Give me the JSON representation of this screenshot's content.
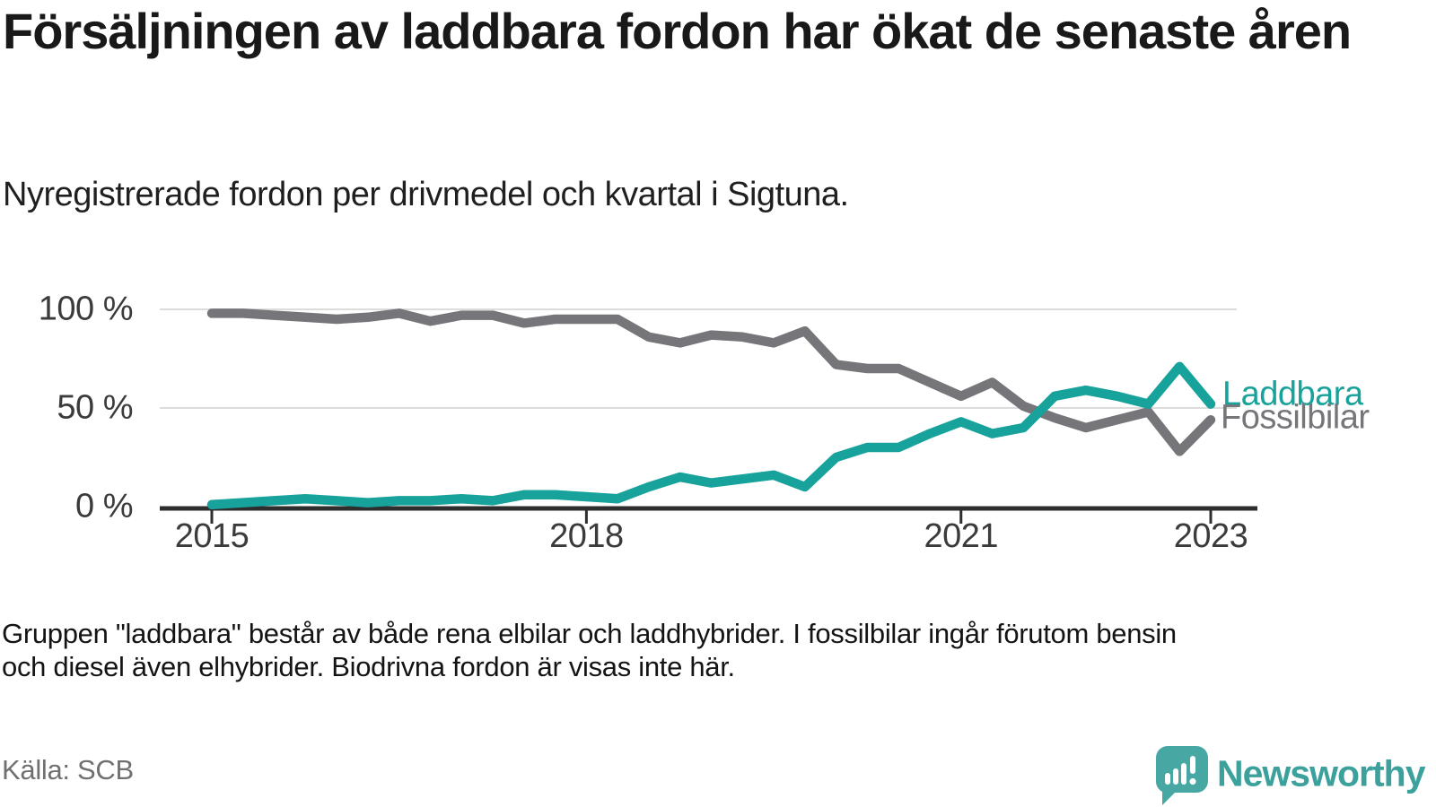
{
  "title": "Försäljningen av laddbara fordon har ökat de senaste åren",
  "subtitle": "Nyregistrerade fordon per drivmedel och kvartal i Sigtuna.",
  "footnote_lines": [
    "Gruppen \"laddbara\" består av både rena elbilar och laddhybrider. I fossilbilar ingår förutom bensin",
    "och diesel även elhybrider. Biodrivna fordon är visas inte här."
  ],
  "source": "Källa: SCB",
  "branding": {
    "name": "Newsworthy",
    "logo_icon": "speech-bubble-bar-chart-icon",
    "color": "#3ca19c"
  },
  "colors": {
    "laddbara": "#18a29c",
    "fossilbilar": "#76767a",
    "gridline": "#dcdcdc",
    "axis": "#2e2e2e",
    "tick_text": "#3b3b3b"
  },
  "chart_data": {
    "type": "line",
    "title": "Nyregistrerade fordon per drivmedel och kvartal i Sigtuna",
    "x_start": "2015 Q1",
    "x_end": "2023 Q1",
    "x_step": "quarter",
    "ylim": [
      0,
      100
    ],
    "grid": true,
    "legend_position": "line-end-labels",
    "y_ticks": [
      {
        "label": "100 %",
        "value": 100
      },
      {
        "label": "50 %",
        "value": 50
      },
      {
        "label": "0 %",
        "value": 0
      }
    ],
    "x_ticks": [
      {
        "label": "2015",
        "quarter_index": 0
      },
      {
        "label": "2018",
        "quarter_index": 12
      },
      {
        "label": "2021",
        "quarter_index": 24
      },
      {
        "label": "2023",
        "quarter_index": 32
      }
    ],
    "series": [
      {
        "name": "Fossilbilar",
        "color": "#76767a",
        "values": [
          98,
          98,
          97,
          96,
          95,
          96,
          98,
          94,
          97,
          97,
          93,
          95,
          95,
          95,
          86,
          83,
          87,
          86,
          83,
          89,
          72,
          70,
          70,
          63,
          56,
          63,
          51,
          45,
          40,
          44,
          48,
          28,
          44
        ]
      },
      {
        "name": "Laddbara",
        "color": "#18a29c",
        "values": [
          1,
          2,
          3,
          4,
          3,
          2,
          3,
          3,
          4,
          3,
          6,
          6,
          5,
          4,
          10,
          15,
          12,
          14,
          16,
          10,
          25,
          30,
          30,
          37,
          43,
          37,
          40,
          56,
          59,
          56,
          52,
          71,
          52
        ]
      }
    ]
  }
}
